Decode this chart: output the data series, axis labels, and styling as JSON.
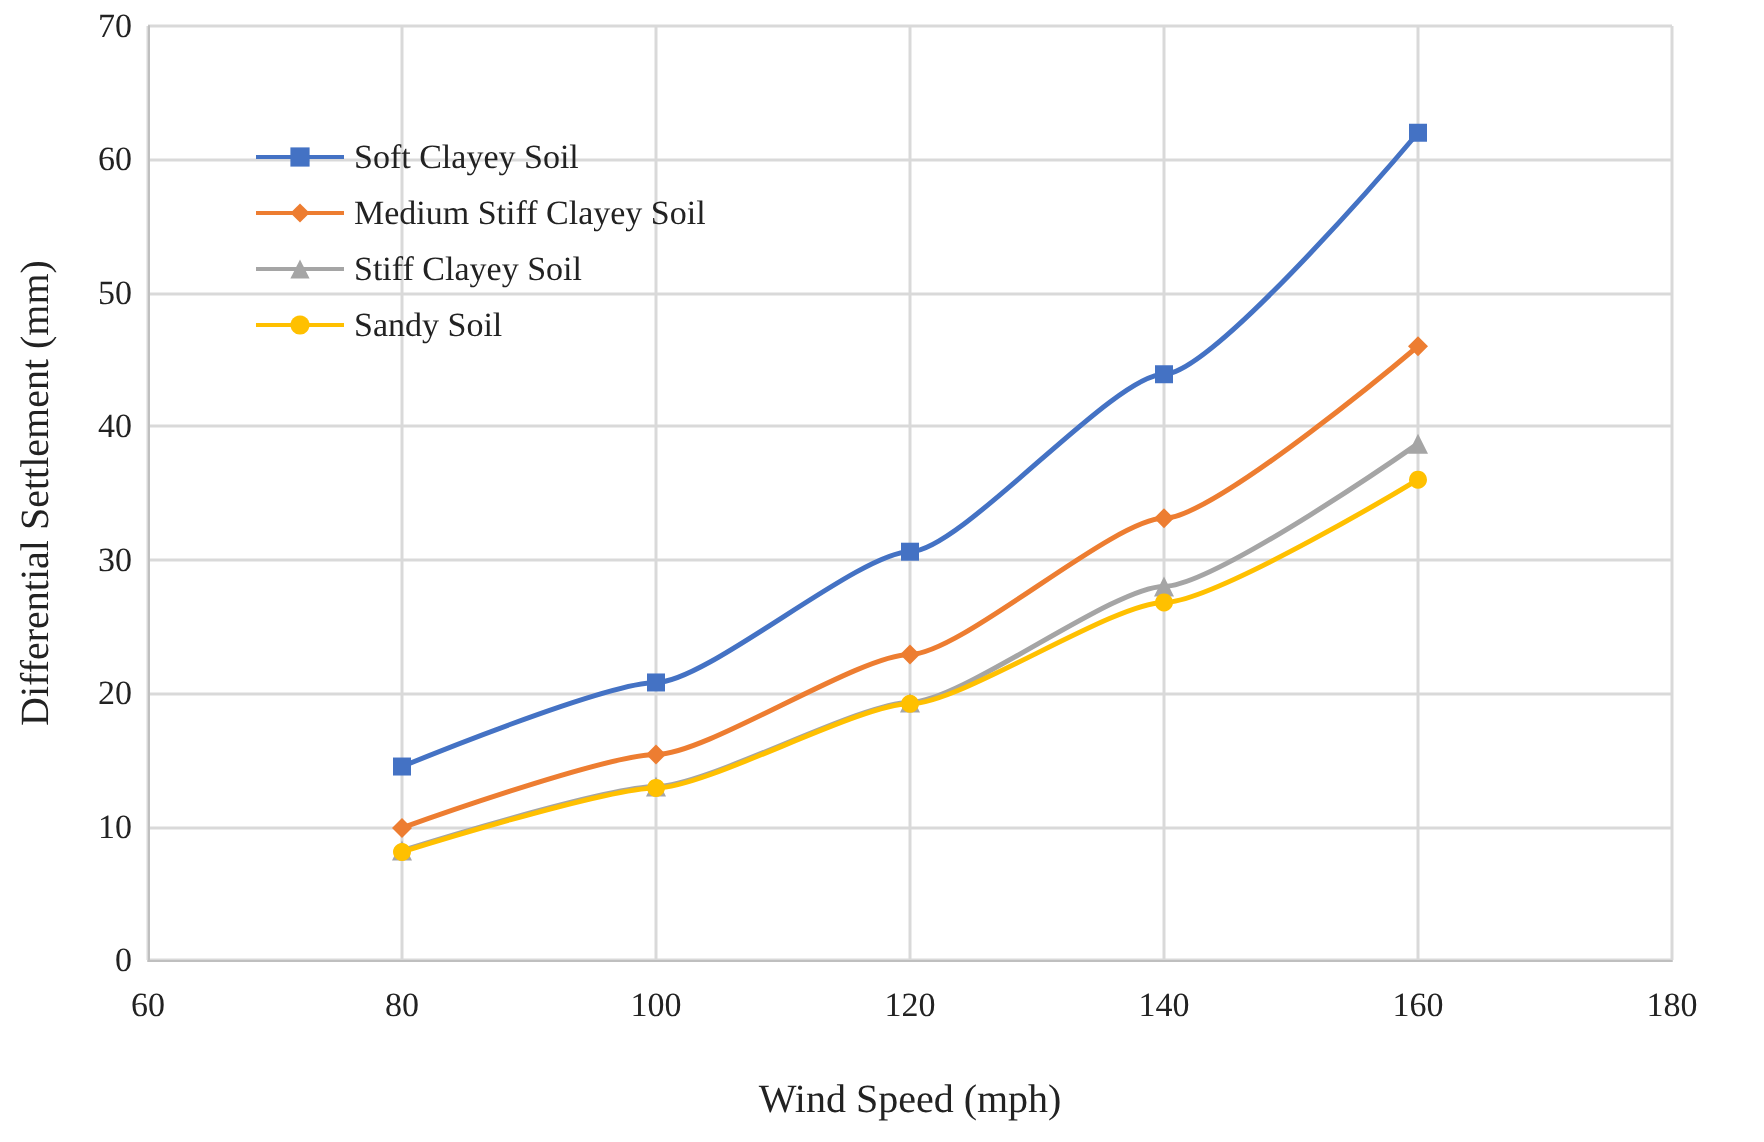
{
  "chart_data": {
    "type": "line",
    "xlabel": "Wind Speed (mph)",
    "ylabel": "Differential Settlement (mm)",
    "x": [
      80,
      100,
      120,
      140,
      160
    ],
    "xlim": [
      60,
      180
    ],
    "xticks": [
      60,
      80,
      100,
      120,
      140,
      160,
      180
    ],
    "ylim": [
      0,
      70
    ],
    "yticks": [
      0,
      10,
      20,
      30,
      40,
      50,
      60,
      70
    ],
    "grid": true,
    "legend": "top left",
    "line_style": "solid",
    "series": [
      {
        "name": "Soft Clayey Soil",
        "color": "#4472c4",
        "marker": "square",
        "values": [
          14.5,
          20.8,
          30.6,
          43.9,
          62
        ]
      },
      {
        "name": "Medium Stiff Clayey Soil",
        "color": "#ed7d31",
        "marker": "diamond",
        "values": [
          9.9,
          15.4,
          22.9,
          33.1,
          46
        ]
      },
      {
        "name": "Stiff Clayey Soil",
        "color": "#a5a5a5",
        "marker": "triangle",
        "values": [
          8.2,
          13,
          19.3,
          28,
          38.7
        ]
      },
      {
        "name": "Sandy Soil",
        "color": "#ffc000",
        "marker": "circle",
        "values": [
          8.1,
          12.9,
          19.2,
          26.8,
          36
        ]
      }
    ]
  }
}
